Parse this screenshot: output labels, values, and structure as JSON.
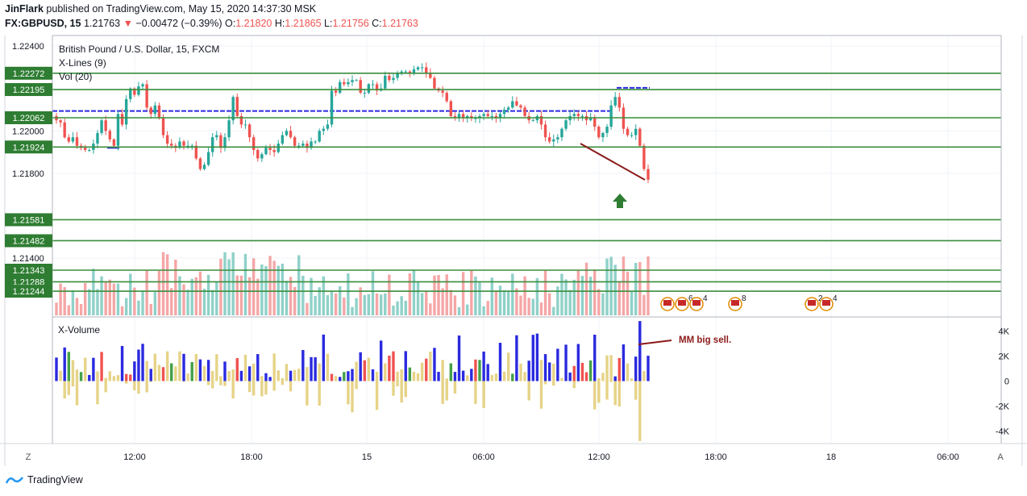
{
  "header": {
    "author": "JinFlark",
    "published": "published on TradingView.com, May 15, 2020 14:37:30 MSK",
    "symbol_line": "FX:GBPUSD, 15",
    "last": "1.21763",
    "change": "−0.00472 (−0.39%)",
    "o_label": "O:",
    "o": "1.21820",
    "h_label": "H:",
    "h": "1.21865",
    "l_label": "L:",
    "l": "1.21756",
    "c_label": "C:",
    "c": "1.21763"
  },
  "legend": {
    "title": "British Pound / U.S. Dollar, 15, FXCM",
    "xlines": "X-Lines (9)",
    "vol": "Vol (20)"
  },
  "lower_pane": {
    "title": "X-Volume"
  },
  "annotation": {
    "text": "MM big sell."
  },
  "buttons": {
    "z": "Z",
    "a": "A"
  },
  "footer": {
    "brand": "TradingView"
  },
  "colors": {
    "up": "#26a69a",
    "down": "#ef5350",
    "level": "#388e3c",
    "blue": "#2a2ae0",
    "sell": "#8b1a1a"
  },
  "chart_data": [
    {
      "type": "candlestick",
      "title": "British Pound / U.S. Dollar, 15, FXCM",
      "y_ticks": [
        "1.22400",
        "1.22000",
        "1.21800",
        "1.21400"
      ],
      "ylim": [
        1.2113,
        1.2245
      ],
      "x_ticks": [
        "12:00",
        "18:00",
        "15",
        "06:00",
        "12:00",
        "18:00",
        "18",
        "06:00"
      ],
      "levels": [
        "1.22272",
        "1.22195",
        "1.22062",
        "1.21924",
        "1.21581",
        "1.21482",
        "1.21343",
        "1.21288",
        "1.21244"
      ],
      "blue_levels": [
        1.22094,
        1.22203
      ],
      "series": [
        {
          "close": [
            1.2205,
            1.2204,
            1.2197,
            1.2195,
            1.2197,
            1.2193,
            1.2192,
            1.2191,
            1.2191,
            1.2194,
            1.2199,
            1.2205,
            1.22,
            1.2196,
            1.2193,
            1.2208,
            1.2203,
            1.2215,
            1.222,
            1.2217,
            1.2221,
            1.2222,
            1.2211,
            1.2208,
            1.2212,
            1.2206,
            1.2198,
            1.2194,
            1.2193,
            1.2192,
            1.2195,
            1.2193,
            1.2193,
            1.2193,
            1.2187,
            1.2182,
            1.2184,
            1.219,
            1.2197,
            1.2198,
            1.2192,
            1.2197,
            1.2205,
            1.2216,
            1.2207,
            1.2203,
            1.2203,
            1.2197,
            1.2191,
            1.2187,
            1.2189,
            1.2192,
            1.2191,
            1.219,
            1.2194,
            1.2198,
            1.22,
            1.2197,
            1.2193,
            1.2193,
            1.2194,
            1.2192,
            1.2195,
            1.2195,
            1.22,
            1.2201,
            1.2203,
            1.2219,
            1.2218,
            1.2223,
            1.2222,
            1.2223,
            1.2224,
            1.2224,
            1.2218,
            1.2218,
            1.2222,
            1.2222,
            1.2219,
            1.222,
            1.2226,
            1.2224,
            1.2225,
            1.2227,
            1.2228,
            1.2228,
            1.2227,
            1.2229,
            1.223,
            1.223,
            1.2227,
            1.2225,
            1.222,
            1.2219,
            1.2218,
            1.2214,
            1.2207,
            1.2206,
            1.2208,
            1.2206,
            1.2207,
            1.2206,
            1.2206,
            1.2207,
            1.2208,
            1.2207,
            1.2207,
            1.2206,
            1.2208,
            1.221,
            1.2211,
            1.2214,
            1.2212,
            1.2211,
            1.2207,
            1.2205,
            1.2205,
            1.2207,
            1.2203,
            1.2197,
            1.2195,
            1.2196,
            1.2197,
            1.2201,
            1.2205,
            1.2207,
            1.2208,
            1.2207,
            1.2207,
            1.2205,
            1.2206,
            1.2202,
            1.2197,
            1.2199,
            1.2202,
            1.2212,
            1.2216,
            1.2211,
            1.2201,
            1.2198,
            1.2198,
            1.2201,
            1.2193,
            1.2182,
            1.2177
          ]
        }
      ]
    },
    {
      "type": "bar",
      "title": "X-Volume",
      "y_ticks": [
        "4K",
        "2K",
        "0",
        "-2K",
        "-4K"
      ],
      "ylim": [
        -5000,
        5000
      ]
    }
  ]
}
